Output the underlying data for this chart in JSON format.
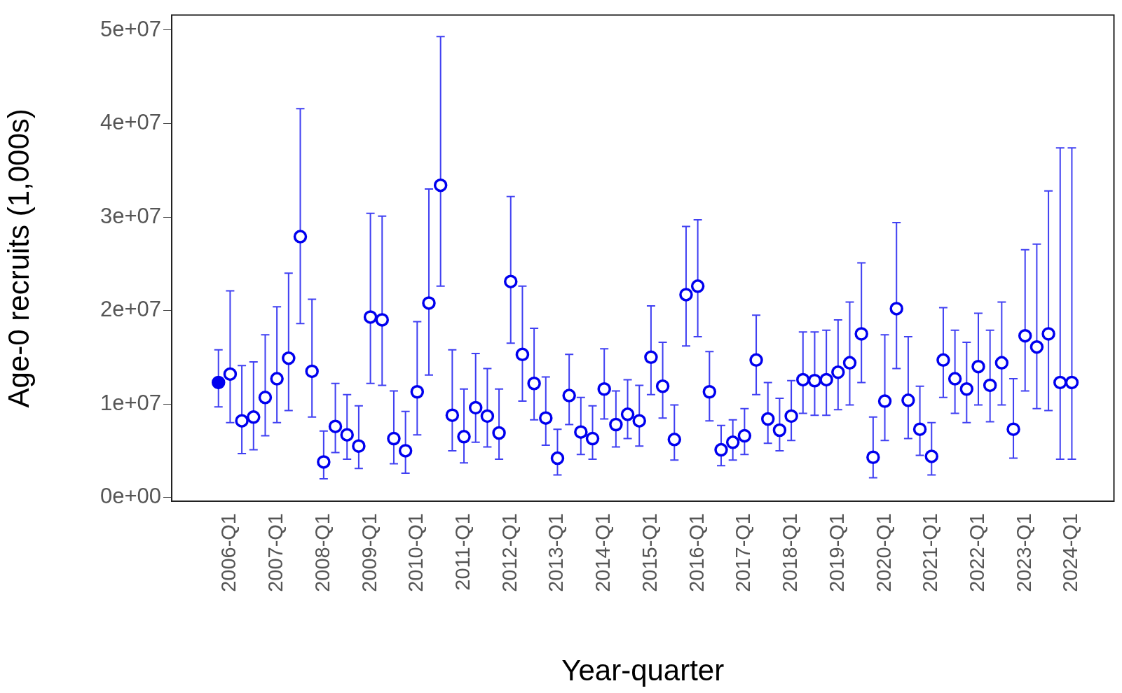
{
  "chart_data": {
    "type": "scatter",
    "xlabel": "Year-quarter",
    "ylabel": "Age-0 recruits (1,000s)",
    "categories": [
      null,
      "2006-Q1",
      null,
      null,
      null,
      "2007-Q1",
      null,
      null,
      null,
      "2008-Q1",
      null,
      null,
      null,
      "2009-Q1",
      null,
      null,
      null,
      "2010-Q1",
      null,
      null,
      null,
      "2011-Q1",
      null,
      null,
      null,
      "2012-Q1",
      null,
      null,
      null,
      "2013-Q1",
      null,
      null,
      null,
      "2014-Q1",
      null,
      null,
      null,
      "2015-Q1",
      null,
      null,
      null,
      "2016-Q1",
      null,
      null,
      null,
      "2017-Q1",
      null,
      null,
      null,
      "2018-Q1",
      null,
      null,
      null,
      "2019-Q1",
      null,
      null,
      null,
      "2020-Q1",
      null,
      null,
      null,
      "2021-Q1",
      null,
      null,
      null,
      "2022-Q1",
      null,
      null,
      null,
      "2023-Q1",
      null,
      null,
      null,
      "2024-Q1"
    ],
    "ylim": [
      -400000,
      51600000
    ],
    "yticks": [
      {
        "value": 0,
        "label": "0e+00"
      },
      {
        "value": 10000000,
        "label": "1e+07"
      },
      {
        "value": 20000000,
        "label": "2e+07"
      },
      {
        "value": 30000000,
        "label": "3e+07"
      },
      {
        "value": 40000000,
        "label": "4e+07"
      },
      {
        "value": 50000000,
        "label": "5e+07"
      }
    ],
    "grid": false,
    "legend": false,
    "marker": "circle",
    "series": [
      {
        "color": "#0000ee",
        "values": [
          12300000,
          null,
          null,
          null,
          null,
          null,
          null,
          null,
          null,
          null,
          null,
          null,
          null,
          null,
          null,
          null,
          null,
          null,
          null,
          null,
          null,
          null,
          null,
          null,
          null,
          null,
          null,
          null,
          null,
          null,
          null,
          null,
          null,
          null,
          null,
          null,
          null,
          null,
          null,
          null,
          null,
          null,
          null,
          null,
          null,
          null,
          null,
          null,
          null,
          null,
          null,
          null,
          null,
          null,
          null,
          null,
          null,
          null,
          null,
          null,
          null,
          null,
          null,
          null,
          null,
          null,
          null,
          null,
          null,
          null,
          null,
          null,
          null,
          null
        ],
        "errors": [
          [
            9700000,
            15800000
          ],
          null,
          null,
          null,
          null,
          null,
          null,
          null,
          null,
          null,
          null,
          null,
          null,
          null,
          null,
          null,
          null,
          null,
          null,
          null,
          null,
          null,
          null,
          null,
          null,
          null,
          null,
          null,
          null,
          null,
          null,
          null,
          null,
          null,
          null,
          null,
          null,
          null,
          null,
          null,
          null,
          null,
          null,
          null,
          null,
          null,
          null,
          null,
          null,
          null,
          null,
          null,
          null,
          null,
          null,
          null,
          null,
          null,
          null,
          null,
          null,
          null,
          null,
          null,
          null,
          null,
          null,
          null,
          null,
          null,
          null,
          null,
          null,
          null
        ]
      },
      {
        "color": "#0000ee",
        "values": [
          null,
          13200000,
          8200000,
          8600000,
          10700000,
          12700000,
          14900000,
          27900000,
          13500000,
          3800000,
          7600000,
          6700000,
          5500000,
          19300000,
          19000000,
          6300000,
          5000000,
          11300000,
          20800000,
          33400000,
          8800000,
          6500000,
          9600000,
          8700000,
          6900000,
          23100000,
          15300000,
          12200000,
          8500000,
          4200000,
          10900000,
          7000000,
          6300000,
          11600000,
          7800000,
          8900000,
          8200000,
          15000000,
          11900000,
          6200000,
          21700000,
          22600000,
          11300000,
          5100000,
          5900000,
          6600000,
          14700000,
          8400000,
          7200000,
          8700000,
          12600000,
          12500000,
          12600000,
          13400000,
          14400000,
          17500000,
          4300000,
          10300000,
          20200000,
          10400000,
          7300000,
          4400000,
          14700000,
          12700000,
          11600000,
          14000000,
          12000000,
          14400000,
          7300000,
          17300000,
          16100000,
          17500000,
          12300000,
          12300000
        ],
        "errors": [
          null,
          [
            8000000,
            22100000
          ],
          [
            4700000,
            14100000
          ],
          [
            5100000,
            14500000
          ],
          [
            6600000,
            17400000
          ],
          [
            8000000,
            20400000
          ],
          [
            9300000,
            24000000
          ],
          [
            18600000,
            41600000
          ],
          [
            8600000,
            21200000
          ],
          [
            2000000,
            7100000
          ],
          [
            4800000,
            12200000
          ],
          [
            4100000,
            11000000
          ],
          [
            3100000,
            9800000
          ],
          [
            12200000,
            30400000
          ],
          [
            12000000,
            30100000
          ],
          [
            3600000,
            11400000
          ],
          [
            2600000,
            9200000
          ],
          [
            6700000,
            18800000
          ],
          [
            13100000,
            33000000
          ],
          [
            22600000,
            49300000
          ],
          [
            5000000,
            15800000
          ],
          [
            3700000,
            11600000
          ],
          [
            5900000,
            15400000
          ],
          [
            5400000,
            13800000
          ],
          [
            4100000,
            11600000
          ],
          [
            16500000,
            32200000
          ],
          [
            10300000,
            22600000
          ],
          [
            8300000,
            18100000
          ],
          [
            5600000,
            12900000
          ],
          [
            2400000,
            7300000
          ],
          [
            7800000,
            15300000
          ],
          [
            4600000,
            10700000
          ],
          [
            4100000,
            9800000
          ],
          [
            8400000,
            15900000
          ],
          [
            5400000,
            11400000
          ],
          [
            6300000,
            12600000
          ],
          [
            5500000,
            12000000
          ],
          [
            11000000,
            20500000
          ],
          [
            8500000,
            16600000
          ],
          [
            4000000,
            9900000
          ],
          [
            16200000,
            29000000
          ],
          [
            17200000,
            29700000
          ],
          [
            8200000,
            15600000
          ],
          [
            3400000,
            7700000
          ],
          [
            4000000,
            8300000
          ],
          [
            4600000,
            9500000
          ],
          [
            11000000,
            19500000
          ],
          [
            5800000,
            12300000
          ],
          [
            5000000,
            10600000
          ],
          [
            6100000,
            12500000
          ],
          [
            9000000,
            17700000
          ],
          [
            8800000,
            17700000
          ],
          [
            8800000,
            17900000
          ],
          [
            9400000,
            19000000
          ],
          [
            9900000,
            20900000
          ],
          [
            12300000,
            25100000
          ],
          [
            2100000,
            8600000
          ],
          [
            6100000,
            17400000
          ],
          [
            13800000,
            29400000
          ],
          [
            6300000,
            17200000
          ],
          [
            4500000,
            11900000
          ],
          [
            2400000,
            8000000
          ],
          [
            10700000,
            20300000
          ],
          [
            9000000,
            17900000
          ],
          [
            8000000,
            16600000
          ],
          [
            9900000,
            19700000
          ],
          [
            8100000,
            17900000
          ],
          [
            9900000,
            20900000
          ],
          [
            4200000,
            12700000
          ],
          [
            11400000,
            26500000
          ],
          [
            9500000,
            27100000
          ],
          [
            9300000,
            32800000
          ],
          [
            4100000,
            37400000
          ],
          [
            4100000,
            37400000
          ]
        ]
      }
    ]
  }
}
